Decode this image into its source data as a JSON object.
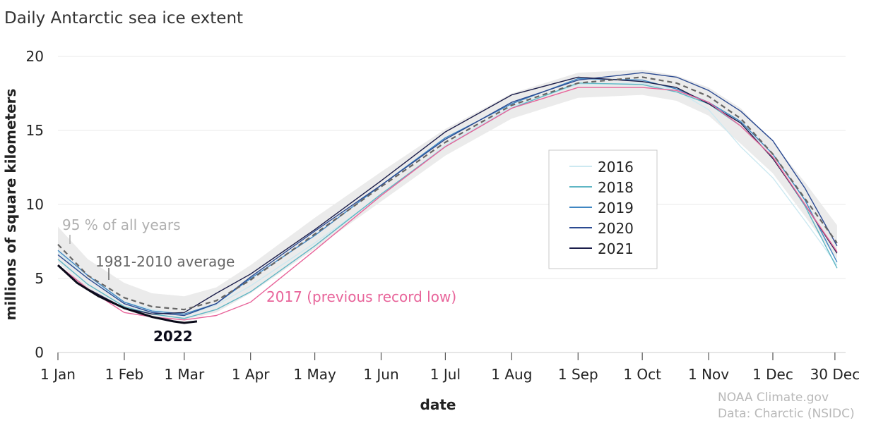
{
  "chart_data": {
    "type": "line",
    "title": "Daily Antarctic sea ice extent",
    "xlabel": "date",
    "ylabel": "millions of square kilometers",
    "x_ticks": [
      {
        "label": "1 Jan",
        "day": 1
      },
      {
        "label": "1 Feb",
        "day": 32
      },
      {
        "label": "1 Mar",
        "day": 60
      },
      {
        "label": "1 Apr",
        "day": 91
      },
      {
        "label": "1 May",
        "day": 121
      },
      {
        "label": "1 Jun",
        "day": 152
      },
      {
        "label": "1 Jul",
        "day": 182
      },
      {
        "label": "1 Aug",
        "day": 213
      },
      {
        "label": "1 Sep",
        "day": 244
      },
      {
        "label": "1 Oct",
        "day": 274
      },
      {
        "label": "1 Nov",
        "day": 305
      },
      {
        "label": "1 Dec",
        "day": 335
      },
      {
        "label": "30 Dec",
        "day": 364
      }
    ],
    "y_ticks": [
      0,
      5,
      10,
      15,
      20
    ],
    "xlim": [
      1,
      369
    ],
    "ylim": [
      0,
      20
    ],
    "grid": true,
    "band": {
      "name": "95 % of all years",
      "x": [
        1,
        15,
        32,
        45,
        60,
        75,
        91,
        121,
        152,
        182,
        213,
        244,
        274,
        290,
        305,
        320,
        335,
        350,
        365
      ],
      "upper": [
        8.5,
        6.3,
        4.7,
        4.0,
        3.8,
        4.4,
        5.9,
        9.1,
        12.2,
        15.1,
        17.5,
        18.9,
        19.1,
        18.7,
        17.9,
        16.5,
        14.2,
        11.5,
        8.6
      ],
      "lower": [
        6.1,
        4.2,
        2.9,
        2.3,
        2.2,
        2.7,
        4.0,
        7.0,
        10.2,
        13.3,
        15.8,
        17.2,
        17.4,
        17.0,
        16.0,
        14.1,
        12.1,
        9.2,
        6.3
      ]
    },
    "average": {
      "name": "1981-2010 average",
      "x": [
        1,
        15,
        32,
        45,
        60,
        75,
        91,
        121,
        152,
        182,
        213,
        244,
        274,
        290,
        305,
        320,
        335,
        350,
        365
      ],
      "values": [
        7.3,
        5.2,
        3.7,
        3.1,
        2.9,
        3.5,
        4.9,
        8.0,
        11.2,
        14.2,
        16.7,
        18.2,
        18.6,
        18.2,
        17.3,
        15.8,
        13.4,
        10.4,
        7.4
      ]
    },
    "series": [
      {
        "name": "2016",
        "color": "#cde9f1",
        "x": [
          1,
          15,
          32,
          45,
          60,
          75,
          91,
          121,
          152,
          182,
          213,
          244,
          274,
          290,
          305,
          320,
          335,
          350,
          365
        ],
        "values": [
          6.8,
          5.0,
          3.4,
          2.9,
          2.5,
          3.2,
          4.5,
          7.4,
          10.6,
          14.0,
          16.6,
          18.1,
          18.2,
          17.7,
          16.4,
          13.9,
          11.8,
          8.9,
          5.9
        ]
      },
      {
        "name": "2018",
        "color": "#5fb6c4",
        "x": [
          1,
          15,
          32,
          45,
          60,
          75,
          91,
          121,
          152,
          182,
          213,
          244,
          274,
          290,
          305,
          320,
          335,
          350,
          365
        ],
        "values": [
          6.3,
          4.6,
          3.1,
          2.6,
          2.3,
          2.9,
          4.1,
          7.2,
          10.7,
          13.9,
          16.5,
          18.2,
          18.1,
          17.6,
          16.8,
          15.3,
          13.2,
          9.9,
          5.7
        ]
      },
      {
        "name": "2019",
        "color": "#3f86c2",
        "x": [
          1,
          15,
          32,
          45,
          60,
          75,
          91,
          121,
          152,
          182,
          213,
          244,
          274,
          290,
          305,
          320,
          335,
          350,
          365
        ],
        "values": [
          6.9,
          5.2,
          3.4,
          2.8,
          2.6,
          3.3,
          5.0,
          7.9,
          11.3,
          14.5,
          16.8,
          18.5,
          18.4,
          17.8,
          16.9,
          15.6,
          13.4,
          10.3,
          6.1
        ]
      },
      {
        "name": "2020",
        "color": "#2b4a91",
        "x": [
          1,
          15,
          32,
          45,
          60,
          75,
          91,
          121,
          152,
          182,
          213,
          244,
          274,
          290,
          305,
          320,
          335,
          350,
          365
        ],
        "values": [
          6.6,
          5.0,
          3.3,
          2.7,
          2.5,
          3.3,
          5.1,
          8.2,
          11.3,
          14.4,
          16.9,
          18.4,
          18.9,
          18.6,
          17.7,
          16.3,
          14.3,
          11.1,
          7.2
        ]
      },
      {
        "name": "2021",
        "color": "#1c1e4a",
        "x": [
          1,
          15,
          32,
          45,
          60,
          75,
          91,
          121,
          152,
          182,
          213,
          244,
          274,
          290,
          305,
          320,
          335,
          350,
          365
        ],
        "values": [
          5.9,
          4.3,
          3.0,
          2.6,
          2.7,
          4.0,
          5.3,
          8.3,
          11.6,
          14.9,
          17.4,
          18.6,
          18.3,
          17.9,
          16.8,
          15.5,
          13.1,
          10.0,
          6.7
        ]
      },
      {
        "name": "2017 (previous record low)",
        "color": "#e8649a",
        "x": [
          1,
          15,
          32,
          45,
          60,
          75,
          91,
          121,
          152,
          182,
          213,
          244,
          274,
          290,
          305,
          320,
          335,
          350,
          365
        ],
        "values": [
          5.9,
          4.3,
          2.7,
          2.4,
          2.2,
          2.5,
          3.4,
          6.9,
          10.6,
          13.9,
          16.5,
          17.9,
          17.9,
          17.7,
          16.9,
          15.3,
          13.2,
          10.0,
          6.8
        ]
      },
      {
        "name": "2022",
        "color": "#0b0b1a",
        "x": [
          1,
          10,
          20,
          32,
          45,
          55,
          60,
          66
        ],
        "values": [
          5.9,
          4.7,
          3.8,
          3.0,
          2.4,
          2.1,
          2.0,
          2.1
        ]
      }
    ],
    "legend": {
      "position": "center-right",
      "entries": [
        {
          "name": "2016",
          "color": "#cde9f1"
        },
        {
          "name": "2018",
          "color": "#5fb6c4"
        },
        {
          "name": "2019",
          "color": "#3f86c2"
        },
        {
          "name": "2020",
          "color": "#2b4a91"
        },
        {
          "name": "2021",
          "color": "#1c1e4a"
        }
      ]
    },
    "annotations": {
      "band_label": "95 % of all years",
      "average_label": "1981-2010 average",
      "record_label": "2017 (previous record low)",
      "current_label": "2022"
    },
    "credits": [
      "NOAA Climate.gov",
      "Data: Charctic (NSIDC)"
    ]
  }
}
